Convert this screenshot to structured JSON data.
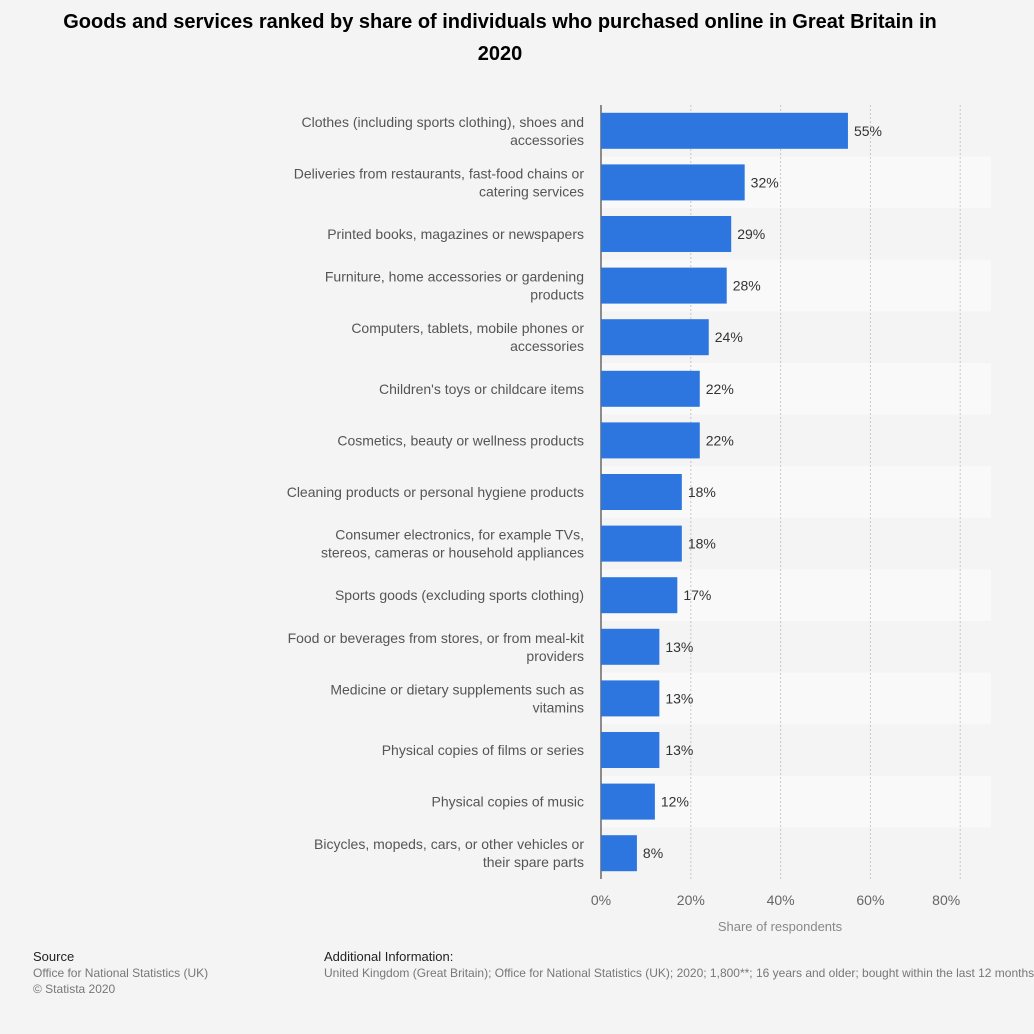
{
  "chart_data": {
    "type": "bar",
    "orientation": "horizontal",
    "title": "Goods and services ranked by share of individuals who purchased online in Great Britain in 2020",
    "categories": [
      "Clothes (including sports clothing), shoes and|accessories",
      "Deliveries from restaurants, fast-food chains or|catering services",
      "Printed books, magazines or newspapers",
      "Furniture, home accessories or gardening|products",
      "Computers, tablets, mobile phones or|accessories",
      "Children's toys or childcare items",
      "Cosmetics, beauty or wellness products",
      "Cleaning products or personal hygiene products",
      "Consumer electronics, for example TVs,|stereos, cameras or household appliances",
      "Sports goods (excluding sports clothing)",
      "Food or beverages from stores, or from meal-kit|providers",
      "Medicine or dietary supplements such as|vitamins",
      "Physical copies of films or series",
      "Physical copies of music",
      "Bicycles, mopeds, cars, or other vehicles or|their spare parts"
    ],
    "values": [
      55,
      32,
      29,
      28,
      24,
      22,
      22,
      18,
      18,
      17,
      13,
      13,
      13,
      12,
      8
    ],
    "value_labels": [
      "55%",
      "32%",
      "29%",
      "28%",
      "24%",
      "22%",
      "22%",
      "18%",
      "18%",
      "17%",
      "13%",
      "13%",
      "13%",
      "12%",
      "8%"
    ],
    "xlabel": "Share of respondents",
    "xlim": [
      0,
      80
    ],
    "xticks": [
      "0%",
      "20%",
      "40%",
      "60%",
      "80%"
    ],
    "grid": "vertical dotted",
    "bar_color": "#2e76df"
  },
  "footer": {
    "source_heading": "Source",
    "source_line1": "Office for National Statistics (UK)",
    "source_line2": "© Statista 2020",
    "additional_heading": "Additional Information:",
    "additional_text": "United Kingdom (Great Britain); Office for National Statistics (UK); 2020; 1,800**; 16 years and older; bought within the last 12 months"
  }
}
